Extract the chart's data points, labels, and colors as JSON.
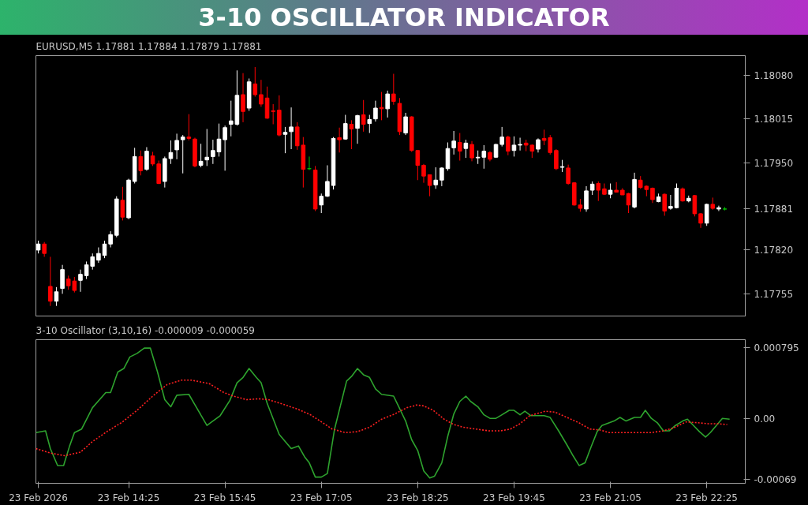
{
  "chart_data": [
    {
      "type": "candlestick",
      "title": "EURUSD,M5  1.17881 1.17884 1.17879 1.17881",
      "annotations": [
        "3-10 OSCILLATOR INDICATOR"
      ],
      "x": [
        "2026-02-23T13:10",
        "2026-02-23T13:15",
        "2026-02-23T13:20",
        "2026-02-23T13:25",
        "2026-02-23T13:30",
        "2026-02-23T13:35",
        "2026-02-23T13:40",
        "2026-02-23T13:45",
        "2026-02-23T13:50",
        "2026-02-23T13:55",
        "2026-02-23T14:00",
        "2026-02-23T14:05",
        "2026-02-23T14:10",
        "2026-02-23T14:15",
        "2026-02-23T14:20",
        "2026-02-23T14:25",
        "2026-02-23T14:30",
        "2026-02-23T14:35",
        "2026-02-23T14:40",
        "2026-02-23T14:45",
        "2026-02-23T14:50",
        "2026-02-23T14:55",
        "2026-02-23T15:00",
        "2026-02-23T15:05",
        "2026-02-23T15:10",
        "2026-02-23T15:15",
        "2026-02-23T15:20",
        "2026-02-23T15:25",
        "2026-02-23T15:30",
        "2026-02-23T15:35",
        "2026-02-23T15:40",
        "2026-02-23T15:45",
        "2026-02-23T15:50",
        "2026-02-23T15:55",
        "2026-02-23T16:00",
        "2026-02-23T16:05",
        "2026-02-23T16:10",
        "2026-02-23T16:15",
        "2026-02-23T16:20",
        "2026-02-23T16:25",
        "2026-02-23T16:30",
        "2026-02-23T16:35",
        "2026-02-23T16:40",
        "2026-02-23T16:45",
        "2026-02-23T16:50",
        "2026-02-23T16:55",
        "2026-02-23T17:00",
        "2026-02-23T17:05",
        "2026-02-23T17:10",
        "2026-02-23T17:15",
        "2026-02-23T17:20",
        "2026-02-23T17:25",
        "2026-02-23T17:30",
        "2026-02-23T17:35",
        "2026-02-23T17:40",
        "2026-02-23T17:45",
        "2026-02-23T17:50",
        "2026-02-23T17:55",
        "2026-02-23T18:00",
        "2026-02-23T18:05",
        "2026-02-23T18:10",
        "2026-02-23T18:15",
        "2026-02-23T18:20",
        "2026-02-23T18:25",
        "2026-02-23T18:30",
        "2026-02-23T18:35",
        "2026-02-23T18:40",
        "2026-02-23T18:45",
        "2026-02-23T18:50",
        "2026-02-23T18:55",
        "2026-02-23T19:00",
        "2026-02-23T19:05",
        "2026-02-23T19:10",
        "2026-02-23T19:15",
        "2026-02-23T19:20",
        "2026-02-23T19:25",
        "2026-02-23T19:30",
        "2026-02-23T19:35",
        "2026-02-23T19:40",
        "2026-02-23T19:45",
        "2026-02-23T19:50",
        "2026-02-23T19:55",
        "2026-02-23T20:00",
        "2026-02-23T20:05",
        "2026-02-23T20:10",
        "2026-02-23T20:15",
        "2026-02-23T20:20",
        "2026-02-23T20:25",
        "2026-02-23T20:30",
        "2026-02-23T20:35",
        "2026-02-23T20:40",
        "2026-02-23T20:45",
        "2026-02-23T20:50",
        "2026-02-23T20:55",
        "2026-02-23T21:00",
        "2026-02-23T21:05",
        "2026-02-23T21:10",
        "2026-02-23T21:15",
        "2026-02-23T21:20",
        "2026-02-23T21:25",
        "2026-02-23T21:30",
        "2026-02-23T21:35",
        "2026-02-23T21:40",
        "2026-02-23T21:45",
        "2026-02-23T21:50",
        "2026-02-23T21:55",
        "2026-02-23T22:00",
        "2026-02-23T22:05",
        "2026-02-23T22:10",
        "2026-02-23T22:15",
        "2026-02-23T22:20",
        "2026-02-23T22:25",
        "2026-02-23T22:30",
        "2026-02-23T22:35",
        "2026-02-23T22:40"
      ],
      "ohlc": [
        [
          1.1782,
          1.17834,
          1.17815,
          1.17829
        ],
        [
          1.17829,
          1.17832,
          1.1781,
          1.17815
        ],
        [
          1.17766,
          1.1781,
          1.17737,
          1.17744
        ],
        [
          1.17744,
          1.17765,
          1.17737,
          1.17758
        ],
        [
          1.17763,
          1.17798,
          1.17755,
          1.17791
        ],
        [
          1.17777,
          1.17782,
          1.17761,
          1.17767
        ],
        [
          1.17774,
          1.1778,
          1.17757,
          1.1776
        ],
        [
          1.17775,
          1.17791,
          1.17758,
          1.17784
        ],
        [
          1.17782,
          1.17803,
          1.17777,
          1.17798
        ],
        [
          1.17796,
          1.17815,
          1.17791,
          1.1781
        ],
        [
          1.17805,
          1.17824,
          1.17801,
          1.17815
        ],
        [
          1.17812,
          1.17834,
          1.17808,
          1.17829
        ],
        [
          1.17829,
          1.17848,
          1.17824,
          1.17843
        ],
        [
          1.17842,
          1.179,
          1.17839,
          1.17896
        ],
        [
          1.17894,
          1.17914,
          1.17864,
          1.17869
        ],
        [
          1.17868,
          1.17926,
          1.17866,
          1.17924
        ],
        [
          1.17922,
          1.17972,
          1.17919,
          1.17959
        ],
        [
          1.17959,
          1.17968,
          1.17931,
          1.17938
        ],
        [
          1.1794,
          1.17973,
          1.17938,
          1.17967
        ],
        [
          1.1796,
          1.17966,
          1.17945,
          1.17948
        ],
        [
          1.17948,
          1.17953,
          1.17918,
          1.17919
        ],
        [
          1.17922,
          1.17959,
          1.17913,
          1.17956
        ],
        [
          1.17956,
          1.17983,
          1.17948,
          1.17965
        ],
        [
          1.17969,
          1.17993,
          1.17955,
          1.17983
        ],
        [
          1.17984,
          1.17991,
          1.17934,
          1.17988
        ],
        [
          1.17988,
          1.18022,
          1.17983,
          1.17986
        ],
        [
          1.17985,
          1.17987,
          1.17943,
          1.17945
        ],
        [
          1.17946,
          1.17978,
          1.17943,
          1.17952
        ],
        [
          1.17954,
          1.18,
          1.17945,
          1.17958
        ],
        [
          1.17959,
          1.17984,
          1.17948,
          1.17968
        ],
        [
          1.17966,
          1.18008,
          1.17959,
          1.17985
        ],
        [
          1.17984,
          1.18005,
          1.17938,
          1.18002
        ],
        [
          1.18007,
          1.18042,
          1.17989,
          1.18012
        ],
        [
          1.18007,
          1.18087,
          1.18005,
          1.1805
        ],
        [
          1.18051,
          1.18083,
          1.1801,
          1.18026
        ],
        [
          1.18031,
          1.18075,
          1.18027,
          1.1807
        ],
        [
          1.18067,
          1.18092,
          1.18048,
          1.18051
        ],
        [
          1.18051,
          1.18073,
          1.18033,
          1.18037
        ],
        [
          1.18046,
          1.18063,
          1.18015,
          1.18016
        ],
        [
          1.18027,
          1.18037,
          1.18007,
          1.18026
        ],
        [
          1.18028,
          1.1805,
          1.17989,
          1.17991
        ],
        [
          1.17992,
          1.18003,
          1.17964,
          1.17995
        ],
        [
          1.17996,
          1.18032,
          1.1797,
          1.18003
        ],
        [
          1.18003,
          1.1801,
          1.17969,
          1.17975
        ],
        [
          1.17976,
          1.17988,
          1.17913,
          1.1794
        ],
        [
          1.17941,
          1.17959,
          1.17939,
          1.17941
        ],
        [
          1.17939,
          1.17945,
          1.17878,
          1.17881
        ],
        [
          1.17887,
          1.17904,
          1.17875,
          1.179
        ],
        [
          1.179,
          1.17946,
          1.17899,
          1.17922
        ],
        [
          1.17916,
          1.17988,
          1.1791,
          1.17986
        ],
        [
          1.17987,
          1.18002,
          1.17965,
          1.17984
        ],
        [
          1.17985,
          1.18021,
          1.17984,
          1.18008
        ],
        [
          1.18007,
          1.18013,
          1.1797,
          1.18
        ],
        [
          1.18001,
          1.18021,
          1.17978,
          1.1802
        ],
        [
          1.18021,
          1.18043,
          1.17996,
          1.18007
        ],
        [
          1.18008,
          1.18021,
          1.17994,
          1.18014
        ],
        [
          1.18015,
          1.18042,
          1.18011,
          1.18031
        ],
        [
          1.18032,
          1.18055,
          1.18013,
          1.1803
        ],
        [
          1.1803,
          1.18057,
          1.18017,
          1.18052
        ],
        [
          1.18052,
          1.18082,
          1.18036,
          1.18041
        ],
        [
          1.18038,
          1.18046,
          1.17991,
          1.17996
        ],
        [
          1.17994,
          1.18024,
          1.17991,
          1.18018
        ],
        [
          1.18018,
          1.18019,
          1.17966,
          1.17968
        ],
        [
          1.17968,
          1.17968,
          1.17924,
          1.17946
        ],
        [
          1.17946,
          1.17948,
          1.1792,
          1.1793
        ],
        [
          1.17932,
          1.17932,
          1.179,
          1.17916
        ],
        [
          1.17917,
          1.17943,
          1.17911,
          1.17924
        ],
        [
          1.17924,
          1.17943,
          1.17915,
          1.17942
        ],
        [
          1.17941,
          1.1798,
          1.17938,
          1.17971
        ],
        [
          1.17972,
          1.17997,
          1.17962,
          1.17982
        ],
        [
          1.1798,
          1.17994,
          1.17953,
          1.17967
        ],
        [
          1.17971,
          1.17984,
          1.17957,
          1.17979
        ],
        [
          1.17977,
          1.17982,
          1.17952,
          1.17957
        ],
        [
          1.17957,
          1.17968,
          1.17948,
          1.17958
        ],
        [
          1.17958,
          1.17976,
          1.17941,
          1.17967
        ],
        [
          1.17965,
          1.17967,
          1.17952,
          1.17955
        ],
        [
          1.17958,
          1.17978,
          1.17957,
          1.17977
        ],
        [
          1.17977,
          1.18003,
          1.17974,
          1.17988
        ],
        [
          1.17988,
          1.1799,
          1.17961,
          1.17967
        ],
        [
          1.17968,
          1.17989,
          1.17959,
          1.17976
        ],
        [
          1.17976,
          1.17987,
          1.17968,
          1.17977
        ],
        [
          1.17979,
          1.17984,
          1.17967,
          1.17976
        ],
        [
          1.17976,
          1.17977,
          1.17957,
          1.17967
        ],
        [
          1.1797,
          1.17986,
          1.17965,
          1.17984
        ],
        [
          1.17986,
          1.17999,
          1.17976,
          1.17983
        ],
        [
          1.17987,
          1.17991,
          1.17962,
          1.17965
        ],
        [
          1.17968,
          1.1797,
          1.17939,
          1.17941
        ],
        [
          1.17943,
          1.17954,
          1.17936,
          1.17944
        ],
        [
          1.17942,
          1.17947,
          1.17917,
          1.17919
        ],
        [
          1.1792,
          1.17921,
          1.17886,
          1.17887
        ],
        [
          1.17887,
          1.17896,
          1.17877,
          1.17882
        ],
        [
          1.17881,
          1.17915,
          1.17877,
          1.17908
        ],
        [
          1.17909,
          1.17922,
          1.17902,
          1.17918
        ],
        [
          1.17919,
          1.17922,
          1.17893,
          1.17909
        ],
        [
          1.17911,
          1.17919,
          1.17902,
          1.17903
        ],
        [
          1.17903,
          1.17919,
          1.17897,
          1.17909
        ],
        [
          1.17909,
          1.17921,
          1.17906,
          1.17906
        ],
        [
          1.17909,
          1.17912,
          1.17902,
          1.17902
        ],
        [
          1.17904,
          1.17905,
          1.17875,
          1.17887
        ],
        [
          1.17884,
          1.17935,
          1.17882,
          1.17925
        ],
        [
          1.17924,
          1.1793,
          1.17911,
          1.17913
        ],
        [
          1.17915,
          1.17916,
          1.179,
          1.1791
        ],
        [
          1.17912,
          1.17913,
          1.1789,
          1.17895
        ],
        [
          1.17892,
          1.17904,
          1.17891,
          1.17899
        ],
        [
          1.17903,
          1.17904,
          1.17871,
          1.17878
        ],
        [
          1.17882,
          1.17902,
          1.1788,
          1.17885
        ],
        [
          1.17883,
          1.17919,
          1.17882,
          1.17912
        ],
        [
          1.17911,
          1.17913,
          1.17892,
          1.17893
        ],
        [
          1.17893,
          1.17901,
          1.17891,
          1.17897
        ],
        [
          1.17901,
          1.17902,
          1.1787,
          1.17874
        ],
        [
          1.17874,
          1.17875,
          1.17853,
          1.1786
        ],
        [
          1.1786,
          1.17889,
          1.17856,
          1.17888
        ],
        [
          1.17888,
          1.17898,
          1.1788,
          1.17882
        ],
        [
          1.17881,
          1.17886,
          1.17878,
          1.17883
        ],
        [
          1.17881,
          1.17884,
          1.17879,
          1.17881
        ]
      ],
      "xlim": [
        "2026-02-23T13:08",
        "2026-02-23T22:57"
      ],
      "ylim": [
        1.17722,
        1.18109
      ],
      "yticks": [
        {
          "value": 1.1808,
          "label": "1.18080"
        },
        {
          "value": 1.18015,
          "label": "1.18015"
        },
        {
          "value": 1.1795,
          "label": "1.17950"
        },
        {
          "value": 1.17881,
          "label": "1.17881"
        },
        {
          "value": 1.1782,
          "label": "1.17820"
        },
        {
          "value": 1.17755,
          "label": "1.17755"
        }
      ],
      "tick_labels": "y"
    },
    {
      "type": "line",
      "title": "3-10 Oscillator (3,10,16) -0.000009 -0.000059",
      "series": [
        {
          "color": "#2ea32e",
          "line_style": "solid",
          "x": [
            "2026-02-23T13:08",
            "2026-02-23T13:16",
            "2026-02-23T13:20",
            "2026-02-23T13:26",
            "2026-02-23T13:31",
            "2026-02-23T13:36",
            "2026-02-23T13:40",
            "2026-02-23T13:46",
            "2026-02-23T13:55",
            "2026-02-23T14:06",
            "2026-02-23T14:10",
            "2026-02-23T14:16",
            "2026-02-23T14:21",
            "2026-02-23T14:26",
            "2026-02-23T14:32",
            "2026-02-23T14:38",
            "2026-02-23T14:43",
            "2026-02-23T14:49",
            "2026-02-23T14:55",
            "2026-02-23T15:00",
            "2026-02-23T15:05",
            "2026-02-23T15:15",
            "2026-02-23T15:30",
            "2026-02-23T15:41",
            "2026-02-23T15:49",
            "2026-02-23T15:55",
            "2026-02-23T16:00",
            "2026-02-23T16:05",
            "2026-02-23T16:11",
            "2026-02-23T16:15",
            "2026-02-23T16:20",
            "2026-02-23T16:30",
            "2026-02-23T16:40",
            "2026-02-23T16:46",
            "2026-02-23T16:51",
            "2026-02-23T16:55",
            "2026-02-23T17:00",
            "2026-02-23T17:05",
            "2026-02-23T17:10",
            "2026-02-23T17:16",
            "2026-02-23T17:26",
            "2026-02-23T17:30",
            "2026-02-23T17:35",
            "2026-02-23T17:40",
            "2026-02-23T17:45",
            "2026-02-23T17:50",
            "2026-02-23T17:55",
            "2026-02-23T18:05",
            "2026-02-23T18:15",
            "2026-02-23T18:20",
            "2026-02-23T18:25",
            "2026-02-23T18:30",
            "2026-02-23T18:35",
            "2026-02-23T18:39",
            "2026-02-23T18:45",
            "2026-02-23T18:50",
            "2026-02-23T18:55",
            "2026-02-23T19:00",
            "2026-02-23T19:05",
            "2026-02-23T19:09",
            "2026-02-23T19:15",
            "2026-02-23T19:20",
            "2026-02-23T19:25",
            "2026-02-23T19:30",
            "2026-02-23T19:35",
            "2026-02-23T19:41",
            "2026-02-23T19:45",
            "2026-02-23T19:50",
            "2026-02-23T19:54",
            "2026-02-23T19:59",
            "2026-02-23T20:10",
            "2026-02-23T20:15",
            "2026-02-23T20:22",
            "2026-02-23T20:29",
            "2026-02-23T20:34",
            "2026-02-23T20:39",
            "2026-02-23T20:44",
            "2026-02-23T20:49",
            "2026-02-23T20:54",
            "2026-02-23T20:58",
            "2026-02-23T21:08",
            "2026-02-23T21:13",
            "2026-02-23T21:18",
            "2026-02-23T21:25",
            "2026-02-23T21:30",
            "2026-02-23T21:34",
            "2026-02-23T21:39",
            "2026-02-23T21:44",
            "2026-02-23T21:49",
            "2026-02-23T21:54",
            "2026-02-23T21:59",
            "2026-02-23T22:05",
            "2026-02-23T22:09",
            "2026-02-23T22:14",
            "2026-02-23T22:19",
            "2026-02-23T22:24",
            "2026-02-23T22:28",
            "2026-02-23T22:33",
            "2026-02-23T22:38",
            "2026-02-23T22:44"
          ],
          "values": [
            -0.00016,
            -0.00014,
            -0.00034,
            -0.00053,
            -0.00053,
            -0.00031,
            -0.00016,
            -0.00012,
            0.00012,
            0.00029,
            0.00029,
            0.00052,
            0.00056,
            0.00069,
            0.00073,
            0.00079,
            0.00079,
            0.00052,
            0.00021,
            0.00013,
            0.00026,
            0.00027,
            -8e-05,
            3e-05,
            0.0002,
            0.0004,
            0.00046,
            0.00056,
            0.00046,
            0.0004,
            0.00017,
            -0.00018,
            -0.00034,
            -0.00031,
            -0.00043,
            -0.0005,
            -0.00066,
            -0.00066,
            -0.00062,
            -0.00012,
            0.00042,
            0.00047,
            0.00056,
            0.00049,
            0.00046,
            0.00033,
            0.00027,
            0.00025,
            -3e-05,
            -0.00024,
            -0.00036,
            -0.00059,
            -0.00067,
            -0.00065,
            -0.0005,
            -0.0002,
            5e-05,
            0.00019,
            0.00025,
            0.00019,
            0.00013,
            4e-05,
            0.0,
            0.0,
            4e-05,
            9e-05,
            9e-05,
            4e-05,
            8e-05,
            3e-05,
            3e-05,
            1e-05,
            -0.00014,
            -0.0003,
            -0.00042,
            -0.00053,
            -0.0005,
            -0.00032,
            -0.00015,
            -8e-05,
            -3e-05,
            1e-05,
            -3e-05,
            1e-05,
            1e-05,
            9e-05,
            0.0,
            -5e-05,
            -0.00014,
            -0.00014,
            -8e-05,
            -3e-05,
            -1e-05,
            -8e-05,
            -0.00015,
            -0.00021,
            -0.00016,
            -8e-05,
            0.0,
            -1e-05
          ]
        },
        {
          "color": "#ff2020",
          "line_style": "dashed",
          "x": [
            "2026-02-23T13:08",
            "2026-02-23T13:20",
            "2026-02-23T13:32",
            "2026-02-23T13:45",
            "2026-02-23T13:55",
            "2026-02-23T14:08",
            "2026-02-23T14:20",
            "2026-02-23T14:32",
            "2026-02-23T14:45",
            "2026-02-23T14:57",
            "2026-02-23T15:09",
            "2026-02-23T15:17",
            "2026-02-23T15:32",
            "2026-02-23T15:44",
            "2026-02-23T15:52",
            "2026-02-23T16:03",
            "2026-02-23T16:13",
            "2026-02-23T16:21",
            "2026-02-23T16:33",
            "2026-02-23T16:46",
            "2026-02-23T16:56",
            "2026-02-23T17:04",
            "2026-02-23T17:14",
            "2026-02-23T17:25",
            "2026-02-23T17:35",
            "2026-02-23T17:45",
            "2026-02-23T17:55",
            "2026-02-23T18:06",
            "2026-02-23T18:16",
            "2026-02-23T18:22",
            "2026-02-23T18:24",
            "2026-02-23T18:30",
            "2026-02-23T18:38",
            "2026-02-23T18:47",
            "2026-02-23T18:55",
            "2026-02-23T19:03",
            "2026-02-23T19:13",
            "2026-02-23T19:24",
            "2026-02-23T19:34",
            "2026-02-23T19:42",
            "2026-02-23T19:50",
            "2026-02-23T19:58",
            "2026-02-23T20:11",
            "2026-02-23T20:19",
            "2026-02-23T20:29",
            "2026-02-23T20:39",
            "2026-02-23T20:48",
            "2026-02-23T20:56",
            "2026-02-23T21:04",
            "2026-02-23T21:16",
            "2026-02-23T21:29",
            "2026-02-23T21:39",
            "2026-02-23T21:49",
            "2026-02-23T21:57",
            "2026-02-23T22:08",
            "2026-02-23T22:18",
            "2026-02-23T22:26",
            "2026-02-23T22:34",
            "2026-02-23T22:42"
          ],
          "values": [
            -0.00034,
            -0.00039,
            -0.00042,
            -0.00038,
            -0.00026,
            -0.00014,
            -4e-05,
            9e-05,
            0.00025,
            0.00038,
            0.00043,
            0.00043,
            0.00039,
            0.00029,
            0.00025,
            0.00021,
            0.00022,
            0.00021,
            0.00016,
            0.0001,
            4e-05,
            -3e-05,
            -0.00012,
            -0.00016,
            -0.00015,
            -0.0001,
            -1e-05,
            5e-05,
            0.00012,
            0.00014,
            0.00015,
            0.00014,
            9e-05,
            -1e-05,
            -7e-05,
            -0.0001,
            -0.00012,
            -0.00014,
            -0.00014,
            -0.00012,
            -6e-05,
            3e-05,
            8e-05,
            7e-05,
            1e-05,
            -5e-05,
            -0.00012,
            -0.00013,
            -0.00016,
            -0.00016,
            -0.00016,
            -0.00016,
            -0.00014,
            -0.00011,
            -4e-05,
            -5e-05,
            -6e-05,
            -6e-05,
            -7e-05
          ]
        }
      ],
      "xlim": [
        "2026-02-23T13:08",
        "2026-02-23T22:57"
      ],
      "ylim": [
        -0.00073,
        0.000884
      ],
      "xticks": [
        {
          "value": "2026-02-23T13:10",
          "label": "23 Feb 2026"
        },
        {
          "value": "2026-02-23T14:25",
          "label": "23 Feb 14:25"
        },
        {
          "value": "2026-02-23T15:45",
          "label": "23 Feb 15:45"
        },
        {
          "value": "2026-02-23T17:05",
          "label": "23 Feb 17:05"
        },
        {
          "value": "2026-02-23T18:25",
          "label": "23 Feb 18:25"
        },
        {
          "value": "2026-02-23T19:45",
          "label": "23 Feb 19:45"
        },
        {
          "value": "2026-02-23T21:05",
          "label": "23 Feb 21:05"
        },
        {
          "value": "2026-02-23T22:25",
          "label": "23 Feb 22:25"
        }
      ],
      "yticks": [
        {
          "value": 0.000795,
          "label": "0.000795"
        },
        {
          "value": 0,
          "label": "0.00"
        },
        {
          "value": -0.00069,
          "label": "-0.00069"
        }
      ]
    }
  ]
}
